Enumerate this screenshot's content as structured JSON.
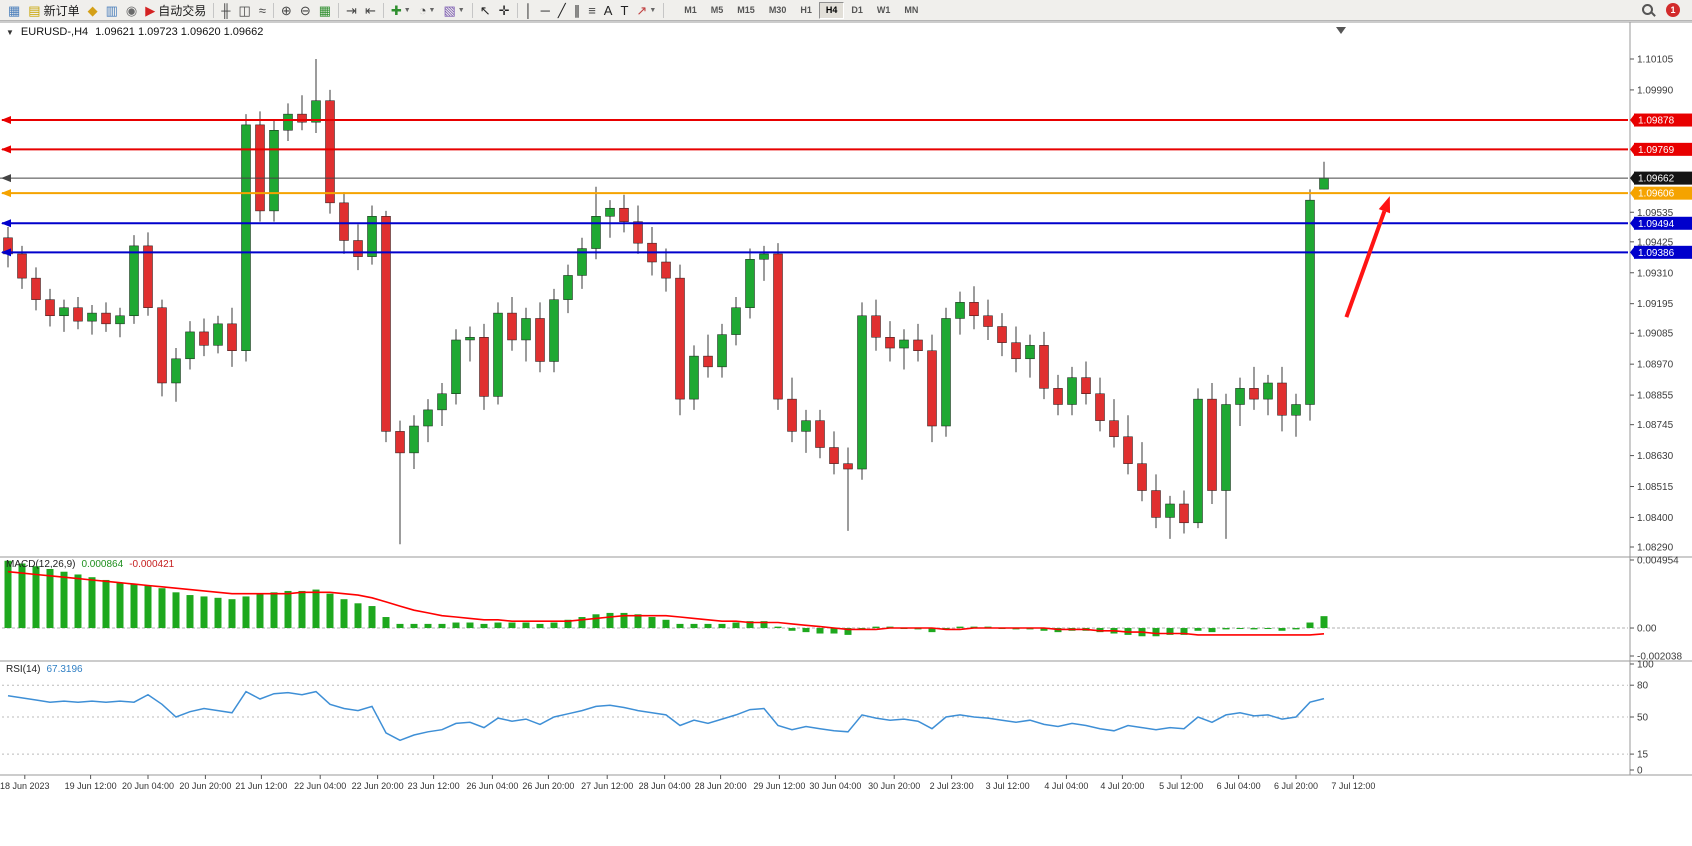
{
  "toolbar": {
    "notification_count": "1",
    "items": [
      {
        "name": "new-chart-button",
        "glyph": "▦",
        "gcolor": "#4a7ebb"
      },
      {
        "name": "new-order-button",
        "glyph": "▤",
        "gcolor": "#c8a400",
        "label": "新订单"
      },
      {
        "name": "mql5-community-icon",
        "glyph": "◆",
        "gcolor": "#d4a017"
      },
      {
        "name": "charts-icon",
        "glyph": "▥",
        "gcolor": "#4a7ebb"
      },
      {
        "name": "market-news-icon",
        "glyph": "◉",
        "gcolor": "#6a6a6a"
      },
      {
        "name": "autotrade-button",
        "glyph": "▶",
        "gcolor": "#d42222",
        "label": "自动交易"
      },
      {
        "sep": true
      },
      {
        "name": "bar-chart-icon",
        "glyph": "╫",
        "gcolor": "#444444"
      },
      {
        "name": "candlestick-chart-icon",
        "glyph": "◫",
        "gcolor": "#444444"
      },
      {
        "name": "line-chart-icon",
        "glyph": "≈",
        "gcolor": "#444444"
      },
      {
        "sep": true
      },
      {
        "name": "zoom-in-icon",
        "glyph": "⊕",
        "gcolor": "#444444"
      },
      {
        "name": "zoom-out-icon",
        "glyph": "⊖",
        "gcolor": "#444444"
      },
      {
        "name": "tile-windows-icon",
        "glyph": "▦",
        "gcolor": "#2f8f2f"
      },
      {
        "sep": true
      },
      {
        "name": "auto-scroll-icon",
        "glyph": "⇥",
        "gcolor": "#444444"
      },
      {
        "name": "chart-shift-icon",
        "glyph": "⇤",
        "gcolor": "#444444"
      },
      {
        "sep": true
      },
      {
        "name": "indicators-dropdown",
        "glyph": "✚",
        "gcolor": "#2f8f2f",
        "dropdown": true
      },
      {
        "name": "periods-dropdown",
        "glyph": "◔",
        "gcolor": "#444444",
        "dropdown": true
      },
      {
        "name": "templates-dropdown",
        "glyph": "▧",
        "gcolor": "#7a5ab0",
        "dropdown": true
      },
      {
        "sep": true
      },
      {
        "name": "cursor-icon",
        "glyph": "↖",
        "gcolor": "#222222"
      },
      {
        "name": "crosshair-icon",
        "glyph": "✛",
        "gcolor": "#222222"
      },
      {
        "sep": true
      },
      {
        "name": "vertical-line-icon",
        "glyph": "│",
        "gcolor": "#222222"
      },
      {
        "name": "horizontal-line-icon",
        "glyph": "─",
        "gcolor": "#222222"
      },
      {
        "name": "trendline-icon",
        "glyph": "╱",
        "gcolor": "#222222"
      },
      {
        "name": "channel-icon",
        "glyph": "∥",
        "gcolor": "#222222"
      },
      {
        "name": "fibonacci-icon",
        "glyph": "≡",
        "gcolor": "#444444"
      },
      {
        "name": "text-icon",
        "glyph": "A",
        "gcolor": "#222222"
      },
      {
        "name": "label-icon",
        "glyph": "T",
        "gcolor": "#222222"
      },
      {
        "name": "arrows-dropdown",
        "glyph": "↗",
        "gcolor": "#c04040",
        "dropdown": true
      },
      {
        "sep": true
      }
    ],
    "timeframes": [
      "M1",
      "M5",
      "M15",
      "M30",
      "H1",
      "H4",
      "D1",
      "W1",
      "MN"
    ],
    "active_timeframe": "H4"
  },
  "chart": {
    "collapse_glyph": "▼",
    "title_symbol": "EURUSD-,H4",
    "title_quotes": "1.09621 1.09723 1.09620 1.09662",
    "price_axis_ticks": [
      "1.10105",
      "1.09990",
      "1.09535",
      "1.09425",
      "1.09310",
      "1.09195",
      "1.09085",
      "1.08970",
      "1.08855",
      "1.08745",
      "1.08630",
      "1.08515",
      "1.08400",
      "1.08290"
    ],
    "price_badges": [
      {
        "label": "1.09878",
        "price": 1.09878,
        "color": "#e80000"
      },
      {
        "label": "1.09769",
        "price": 1.09769,
        "color": "#e80000"
      },
      {
        "label": "1.09662",
        "price": 1.09662,
        "color": "#151515"
      },
      {
        "label": "1.09606",
        "price": 1.09606,
        "color": "#f5a300"
      },
      {
        "label": "1.09494",
        "price": 1.09494,
        "color": "#0000cc"
      },
      {
        "label": "1.09386",
        "price": 1.09386,
        "color": "#0000cc"
      }
    ],
    "hlines": [
      {
        "price": 1.09878,
        "color": "#e80000",
        "width": 2
      },
      {
        "price": 1.09769,
        "color": "#e80000",
        "width": 2
      },
      {
        "price": 1.09606,
        "color": "#f5a300",
        "width": 2
      },
      {
        "price": 1.09494,
        "color": "#0000cc",
        "width": 2
      },
      {
        "price": 1.09386,
        "color": "#0000cc",
        "width": 2
      }
    ],
    "bid_line": {
      "price": 1.09662,
      "color": "#444444"
    },
    "time_axis": [
      {
        "t": "18 Jun 2023",
        "i": 1.2
      },
      {
        "t": "19 Jun 12:00",
        "i": 5.9
      },
      {
        "t": "20 Jun 04:00",
        "i": 10
      },
      {
        "t": "20 Jun 20:00",
        "i": 14.1
      },
      {
        "t": "21 Jun 12:00",
        "i": 18.1
      },
      {
        "t": "22 Jun 04:00",
        "i": 22.3
      },
      {
        "t": "22 Jun 20:00",
        "i": 26.4
      },
      {
        "t": "23 Jun 12:00",
        "i": 30.4
      },
      {
        "t": "26 Jun 04:00",
        "i": 34.6
      },
      {
        "t": "26 Jun 20:00",
        "i": 38.6
      },
      {
        "t": "27 Jun 12:00",
        "i": 42.8
      },
      {
        "t": "28 Jun 04:00",
        "i": 46.9
      },
      {
        "t": "28 Jun 20:00",
        "i": 50.9
      },
      {
        "t": "29 Jun 12:00",
        "i": 55.1
      },
      {
        "t": "30 Jun 04:00",
        "i": 59.1
      },
      {
        "t": "30 Jun 20:00",
        "i": 63.3
      },
      {
        "t": "2 Jul 23:00",
        "i": 67.4
      },
      {
        "t": "3 Jul 12:00",
        "i": 71.4
      },
      {
        "t": "4 Jul 04:00",
        "i": 75.6
      },
      {
        "t": "4 Jul 20:00",
        "i": 79.6
      },
      {
        "t": "5 Jul 12:00",
        "i": 83.8
      },
      {
        "t": "6 Jul 04:00",
        "i": 87.9
      },
      {
        "t": "6 Jul 20:00",
        "i": 92
      },
      {
        "t": "7 Jul 12:00",
        "i": 96.1
      }
    ],
    "macd": {
      "label": "MACD(12,26,9)",
      "value_main": "0.000864",
      "value_signal": "-0.000421",
      "axis": [
        "0.004954",
        "0.00",
        "-0.002038"
      ]
    },
    "rsi": {
      "label": "RSI(14)",
      "value": "67.3196",
      "axis": [
        "100",
        "80",
        "50",
        "15",
        "0"
      ],
      "levels": [
        80,
        50,
        15
      ]
    }
  },
  "colors": {
    "bull": "#1fa832",
    "bear": "#e03030",
    "wick": "#3a3a3a",
    "macd_bar": "#1ea81e",
    "macd_signal": "#ff0000",
    "rsi_line": "#3e8fd6",
    "panel_border": "#9a9a9a",
    "axis_text": "#3c3c3c",
    "arrow": "#ff1414"
  },
  "chart_data": {
    "type": "candlestick",
    "symbol": "EURUSD",
    "timeframe": "H4",
    "ohlc_current": {
      "open": 1.09621,
      "high": 1.09723,
      "low": 1.0962,
      "close": 1.09662
    },
    "price_axis_top": 1.10105,
    "price_axis_bottom": 1.0829,
    "candles": [
      [
        1.0944,
        1.0948,
        1.0933,
        1.0938
      ],
      [
        1.0938,
        1.0941,
        1.0925,
        1.0929
      ],
      [
        1.0929,
        1.0933,
        1.0917,
        1.0921
      ],
      [
        1.0921,
        1.0925,
        1.0911,
        1.0915
      ],
      [
        1.0915,
        1.0921,
        1.0909,
        1.0918
      ],
      [
        1.0918,
        1.0922,
        1.091,
        1.0913
      ],
      [
        1.0913,
        1.0919,
        1.0908,
        1.0916
      ],
      [
        1.0916,
        1.092,
        1.0909,
        1.0912
      ],
      [
        1.0912,
        1.0918,
        1.0907,
        1.0915
      ],
      [
        1.0915,
        1.0945,
        1.0912,
        1.0941
      ],
      [
        1.0941,
        1.0946,
        1.0915,
        1.0918
      ],
      [
        1.0918,
        1.0921,
        1.0885,
        1.089
      ],
      [
        1.089,
        1.0903,
        1.0883,
        1.0899
      ],
      [
        1.0899,
        1.0913,
        1.0895,
        1.0909
      ],
      [
        1.0909,
        1.0914,
        1.09,
        1.0904
      ],
      [
        1.0904,
        1.0915,
        1.0901,
        1.0912
      ],
      [
        1.0912,
        1.0918,
        1.0896,
        1.0902
      ],
      [
        1.0902,
        1.099,
        1.0898,
        1.0986
      ],
      [
        1.0986,
        1.0991,
        1.095,
        1.0954
      ],
      [
        1.0954,
        1.0988,
        1.095,
        1.0984
      ],
      [
        1.0984,
        1.0994,
        1.098,
        1.099
      ],
      [
        1.099,
        1.0997,
        1.0984,
        1.0987
      ],
      [
        1.0987,
        1.10105,
        1.0983,
        1.0995
      ],
      [
        1.0995,
        1.0999,
        1.0953,
        1.0957
      ],
      [
        1.0957,
        1.0961,
        1.0938,
        1.0943
      ],
      [
        1.0943,
        1.0949,
        1.0932,
        1.0937
      ],
      [
        1.0937,
        1.0956,
        1.0934,
        1.0952
      ],
      [
        1.0952,
        1.0954,
        1.0868,
        1.0872
      ],
      [
        1.0872,
        1.0876,
        1.083,
        1.0864
      ],
      [
        1.0864,
        1.0878,
        1.0858,
        1.0874
      ],
      [
        1.0874,
        1.0884,
        1.0868,
        1.088
      ],
      [
        1.088,
        1.089,
        1.0874,
        1.0886
      ],
      [
        1.0886,
        1.091,
        1.0882,
        1.0906
      ],
      [
        1.0906,
        1.0911,
        1.0898,
        1.0907
      ],
      [
        1.0907,
        1.0912,
        1.088,
        1.0885
      ],
      [
        1.0885,
        1.092,
        1.0882,
        1.0916
      ],
      [
        1.0916,
        1.0922,
        1.0902,
        1.0906
      ],
      [
        1.0906,
        1.0918,
        1.0898,
        1.0914
      ],
      [
        1.0914,
        1.092,
        1.0894,
        1.0898
      ],
      [
        1.0898,
        1.0925,
        1.0894,
        1.0921
      ],
      [
        1.0921,
        1.0934,
        1.0916,
        1.093
      ],
      [
        1.093,
        1.0944,
        1.0925,
        1.094
      ],
      [
        1.094,
        1.0963,
        1.0936,
        1.0952
      ],
      [
        1.0952,
        1.0958,
        1.0944,
        1.0955
      ],
      [
        1.0955,
        1.096,
        1.0946,
        1.095
      ],
      [
        1.095,
        1.0956,
        1.0938,
        1.0942
      ],
      [
        1.0942,
        1.0948,
        1.093,
        1.0935
      ],
      [
        1.0935,
        1.094,
        1.0924,
        1.0929
      ],
      [
        1.0929,
        1.0934,
        1.0878,
        1.0884
      ],
      [
        1.0884,
        1.0904,
        1.088,
        1.09
      ],
      [
        1.09,
        1.0908,
        1.0892,
        1.0896
      ],
      [
        1.0896,
        1.0912,
        1.0892,
        1.0908
      ],
      [
        1.0908,
        1.0922,
        1.0904,
        1.0918
      ],
      [
        1.0918,
        1.094,
        1.0914,
        1.0936
      ],
      [
        1.0936,
        1.0941,
        1.0928,
        1.0938
      ],
      [
        1.0938,
        1.0942,
        1.088,
        1.0884
      ],
      [
        1.0884,
        1.0892,
        1.0868,
        1.0872
      ],
      [
        1.0872,
        1.088,
        1.0864,
        1.0876
      ],
      [
        1.0876,
        1.088,
        1.0862,
        1.0866
      ],
      [
        1.0866,
        1.0872,
        1.0856,
        1.086
      ],
      [
        1.086,
        1.0866,
        1.0835,
        1.0858
      ],
      [
        1.0858,
        1.092,
        1.0854,
        1.0915
      ],
      [
        1.0915,
        1.0921,
        1.0902,
        1.0907
      ],
      [
        1.0907,
        1.0913,
        1.0898,
        1.0903
      ],
      [
        1.0903,
        1.091,
        1.0895,
        1.0906
      ],
      [
        1.0906,
        1.0912,
        1.0898,
        1.0902
      ],
      [
        1.0902,
        1.0908,
        1.0868,
        1.0874
      ],
      [
        1.0874,
        1.0918,
        1.087,
        1.0914
      ],
      [
        1.0914,
        1.0924,
        1.0908,
        1.092
      ],
      [
        1.092,
        1.0926,
        1.091,
        1.0915
      ],
      [
        1.0915,
        1.0921,
        1.0906,
        1.0911
      ],
      [
        1.0911,
        1.0916,
        1.09,
        1.0905
      ],
      [
        1.0905,
        1.0911,
        1.0894,
        1.0899
      ],
      [
        1.0899,
        1.0908,
        1.0892,
        1.0904
      ],
      [
        1.0904,
        1.0909,
        1.0884,
        1.0888
      ],
      [
        1.0888,
        1.0893,
        1.0878,
        1.0882
      ],
      [
        1.0882,
        1.0896,
        1.0878,
        1.0892
      ],
      [
        1.0892,
        1.0898,
        1.0882,
        1.0886
      ],
      [
        1.0886,
        1.0892,
        1.0872,
        1.0876
      ],
      [
        1.0876,
        1.0884,
        1.0866,
        1.087
      ],
      [
        1.087,
        1.0878,
        1.0856,
        1.086
      ],
      [
        1.086,
        1.0868,
        1.0846,
        1.085
      ],
      [
        1.085,
        1.0856,
        1.0836,
        1.084
      ],
      [
        1.084,
        1.0848,
        1.0832,
        1.0845
      ],
      [
        1.0845,
        1.085,
        1.0834,
        1.0838
      ],
      [
        1.0838,
        1.0888,
        1.0836,
        1.0884
      ],
      [
        1.0884,
        1.089,
        1.0845,
        1.085
      ],
      [
        1.085,
        1.0886,
        1.0832,
        1.0882
      ],
      [
        1.0882,
        1.0892,
        1.0874,
        1.0888
      ],
      [
        1.0888,
        1.0896,
        1.088,
        1.0884
      ],
      [
        1.0884,
        1.0893,
        1.0878,
        1.089
      ],
      [
        1.089,
        1.0896,
        1.0872,
        1.0878
      ],
      [
        1.0878,
        1.0886,
        1.087,
        1.0882
      ],
      [
        1.0882,
        1.0962,
        1.0876,
        1.0958
      ],
      [
        1.09621,
        1.09723,
        1.0962,
        1.09662
      ]
    ],
    "macd": {
      "type": "bar+line",
      "range_top": 0.004954,
      "range_bottom": -0.002038,
      "histogram": [
        0.0049,
        0.0047,
        0.0045,
        0.0043,
        0.0041,
        0.0039,
        0.0037,
        0.0035,
        0.0033,
        0.0032,
        0.0031,
        0.0029,
        0.0026,
        0.0024,
        0.0023,
        0.0022,
        0.0021,
        0.0023,
        0.0025,
        0.0026,
        0.0027,
        0.0027,
        0.0028,
        0.0025,
        0.0021,
        0.0018,
        0.0016,
        0.0008,
        0.0003,
        0.0003,
        0.0003,
        0.0003,
        0.0004,
        0.0004,
        0.0003,
        0.0004,
        0.0004,
        0.0004,
        0.0003,
        0.0004,
        0.0006,
        0.0008,
        0.001,
        0.0011,
        0.0011,
        0.001,
        0.0008,
        0.0006,
        0.0003,
        0.0003,
        0.0003,
        0.0003,
        0.0004,
        0.0005,
        0.0005,
        0.0001,
        -0.0002,
        -0.0003,
        -0.0004,
        -0.0004,
        -0.0005,
        -0.0001,
        0.0001,
        0.0001,
        0,
        -0.0001,
        -0.0003,
        -0.0001,
        0.0001,
        0.0001,
        0.0001,
        0,
        -0.0001,
        -0.0001,
        -0.0002,
        -0.0003,
        -0.0002,
        -0.0002,
        -0.0003,
        -0.0004,
        -0.0005,
        -0.0006,
        -0.0006,
        -0.0005,
        -0.0005,
        -0.0002,
        -0.0003,
        -0.0001,
        0,
        -0.0001,
        0,
        -0.0002,
        -0.0001,
        0.0004,
        0.000864
      ],
      "signal": [
        0.0041,
        0.004,
        0.0039,
        0.0038,
        0.0037,
        0.0036,
        0.0035,
        0.0034,
        0.0033,
        0.0032,
        0.0031,
        0.003,
        0.0029,
        0.0028,
        0.0027,
        0.0026,
        0.0025,
        0.0025,
        0.0025,
        0.0025,
        0.0025,
        0.0026,
        0.0026,
        0.0026,
        0.0025,
        0.0024,
        0.0022,
        0.0019,
        0.0016,
        0.0013,
        0.0011,
        0.0009,
        0.0008,
        0.0007,
        0.0006,
        0.0006,
        0.0005,
        0.0005,
        0.0005,
        0.0005,
        0.0005,
        0.0006,
        0.0007,
        0.0008,
        0.0009,
        0.0009,
        0.0009,
        0.0009,
        0.0008,
        0.0007,
        0.0006,
        0.0005,
        0.0005,
        0.0004,
        0.0004,
        0.0004,
        0.0003,
        0.0002,
        0.0001,
        0,
        -0.0001,
        -0.0001,
        -0.0001,
        0,
        0,
        0,
        0,
        -0.0001,
        -0.0001,
        0,
        0,
        0,
        0,
        0,
        0,
        -0.0001,
        -0.0001,
        -0.0001,
        -0.0002,
        -0.0002,
        -0.0003,
        -0.0003,
        -0.0004,
        -0.0004,
        -0.0004,
        -0.0005,
        -0.0005,
        -0.0005,
        -0.0005,
        -0.0005,
        -0.0005,
        -0.0005,
        -0.0005,
        -0.0005,
        -0.000421
      ]
    },
    "rsi": {
      "type": "line",
      "range": [
        0,
        100
      ],
      "values": [
        70,
        68,
        66,
        64,
        65,
        64,
        65,
        64,
        65,
        64,
        71,
        62,
        50,
        55,
        58,
        56,
        54,
        74,
        67,
        72,
        73,
        71,
        74,
        62,
        58,
        56,
        60,
        35,
        28,
        33,
        36,
        38,
        44,
        45,
        40,
        49,
        46,
        48,
        43,
        50,
        53,
        56,
        60,
        61,
        59,
        56,
        54,
        52,
        42,
        47,
        44,
        48,
        52,
        57,
        58,
        42,
        38,
        41,
        39,
        37,
        36,
        52,
        49,
        47,
        48,
        46,
        39,
        50,
        52,
        50,
        49,
        47,
        45,
        47,
        43,
        41,
        44,
        42,
        39,
        37,
        42,
        40,
        38,
        40,
        39,
        50,
        45,
        52,
        54,
        51,
        52,
        48,
        50,
        64,
        67.32
      ]
    },
    "annotation_arrow": {
      "from_bar": 95.6,
      "from_price": 1.09145,
      "to_bar": 98.7,
      "to_price": 1.09595
    }
  }
}
